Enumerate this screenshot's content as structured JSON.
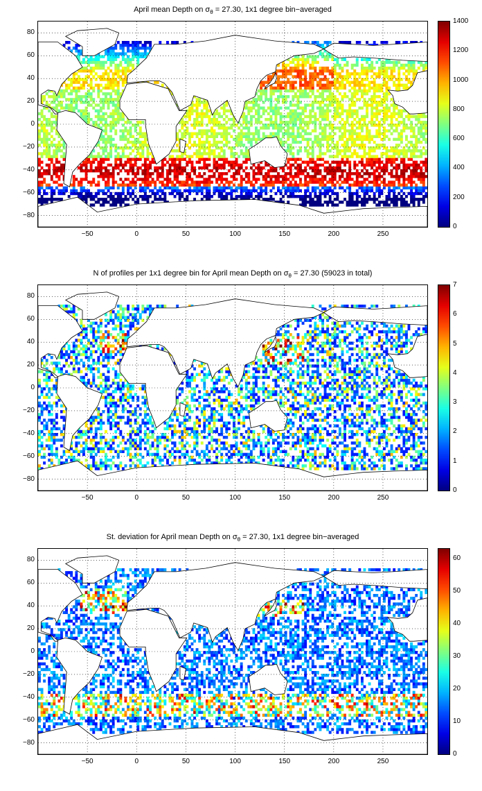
{
  "chart_data": [
    {
      "type": "heatmap",
      "title_main": "April mean Depth on ",
      "title_sigma": "σ",
      "title_sub": "θ",
      "title_rest": " = 27.30, 1x1 degree bin−averaged",
      "xticks": [
        "−50",
        "0",
        "50",
        "100",
        "150",
        "200",
        "250"
      ],
      "xtick_values": [
        -50,
        0,
        50,
        100,
        150,
        200,
        250
      ],
      "yticks": [
        "80",
        "60",
        "40",
        "20",
        "0",
        "−20",
        "−40",
        "−60",
        "−80"
      ],
      "ytick_values": [
        80,
        60,
        40,
        20,
        0,
        -20,
        -40,
        -60,
        -80
      ],
      "xlim": [
        -100,
        295
      ],
      "ylim": [
        -90,
        90
      ],
      "grid": "dotted",
      "colorbar": {
        "ticks": [
          "1400",
          "1200",
          "1000",
          "800",
          "600",
          "400",
          "200",
          "0"
        ],
        "tick_values": [
          1400,
          1200,
          1000,
          800,
          600,
          400,
          200,
          0
        ],
        "range": [
          0,
          1400
        ],
        "colormap": "jet"
      },
      "pattern": "depth"
    },
    {
      "type": "heatmap",
      "title_main": "N of profiles per 1x1 degree bin for April mean Depth on ",
      "title_sigma": "σ",
      "title_sub": "θ",
      "title_rest": " = 27.30 (59023 in total)",
      "xticks": [
        "−50",
        "0",
        "50",
        "100",
        "150",
        "200",
        "250"
      ],
      "xtick_values": [
        -50,
        0,
        50,
        100,
        150,
        200,
        250
      ],
      "yticks": [
        "80",
        "60",
        "40",
        "20",
        "0",
        "−20",
        "−40",
        "−60",
        "−80"
      ],
      "ytick_values": [
        80,
        60,
        40,
        20,
        0,
        -20,
        -40,
        -60,
        -80
      ],
      "xlim": [
        -100,
        295
      ],
      "ylim": [
        -90,
        90
      ],
      "grid": "dotted",
      "colorbar": {
        "ticks": [
          "7",
          "6",
          "5",
          "4",
          "3",
          "2",
          "1",
          "0"
        ],
        "tick_values": [
          7,
          6,
          5,
          4,
          3,
          2,
          1,
          0
        ],
        "range": [
          0,
          7
        ],
        "colormap": "jet"
      },
      "pattern": "count"
    },
    {
      "type": "heatmap",
      "title_main": "St. deviation for April mean Depth on ",
      "title_sigma": "σ",
      "title_sub": "θ",
      "title_rest": " = 27.30, 1x1 degree bin−averaged",
      "xticks": [
        "−50",
        "0",
        "50",
        "100",
        "150",
        "200",
        "250"
      ],
      "xtick_values": [
        -50,
        0,
        50,
        100,
        150,
        200,
        250
      ],
      "yticks": [
        "80",
        "60",
        "40",
        "20",
        "0",
        "−20",
        "−40",
        "−60",
        "−80"
      ],
      "ytick_values": [
        80,
        60,
        40,
        20,
        0,
        -20,
        -40,
        -60,
        -80
      ],
      "xlim": [
        -100,
        295
      ],
      "ylim": [
        -90,
        90
      ],
      "grid": "dotted",
      "colorbar": {
        "ticks": [
          "60",
          "50",
          "40",
          "30",
          "20",
          "10",
          "0"
        ],
        "tick_values": [
          60,
          50,
          40,
          30,
          20,
          10,
          0
        ],
        "range": [
          0,
          63
        ],
        "colormap": "jet"
      },
      "pattern": "std"
    }
  ]
}
